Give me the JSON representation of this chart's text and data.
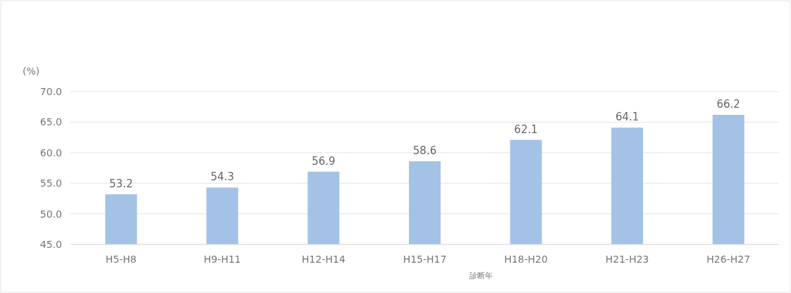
{
  "chart_data": {
    "type": "bar",
    "ylabel": "(%)",
    "xlabel": "診断年",
    "categories": [
      "H5-H8",
      "H9-H11",
      "H12-H14",
      "H15-H17",
      "H18-H20",
      "H21-H23",
      "H26-H27"
    ],
    "values": [
      53.2,
      54.3,
      56.9,
      58.6,
      62.1,
      64.1,
      66.2
    ],
    "color": "#a3c2e6",
    "data_labels": true,
    "grid": "y",
    "ylim": [
      45,
      70
    ],
    "yticks": [
      {
        "value": 45,
        "label": "45.0"
      },
      {
        "value": 50,
        "label": "50.0"
      },
      {
        "value": 55,
        "label": "55.0"
      },
      {
        "value": 60,
        "label": "60.0"
      },
      {
        "value": 65,
        "label": "65.0"
      },
      {
        "value": 70,
        "label": "70.0"
      }
    ]
  }
}
